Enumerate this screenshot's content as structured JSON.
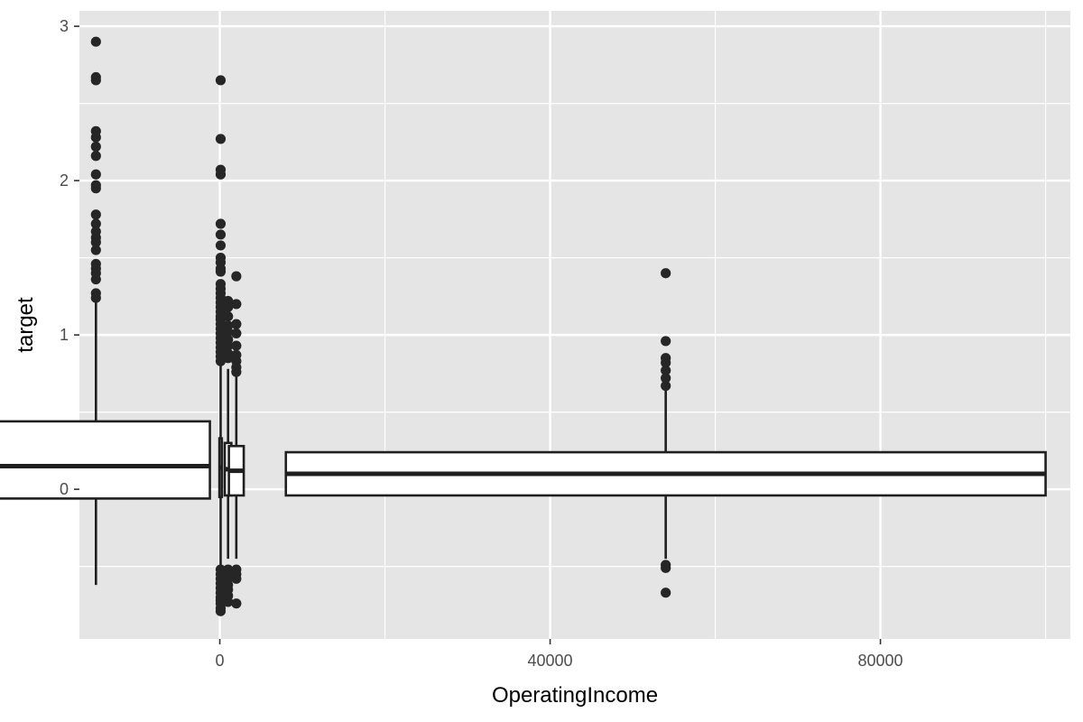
{
  "chart_data": {
    "type": "boxplot",
    "xlabel": "OperatingIncome",
    "ylabel": "target",
    "xlim": [
      -17000,
      103000
    ],
    "ylim": [
      -0.97,
      3.1
    ],
    "x_ticks": [
      0,
      40000,
      80000
    ],
    "x_minor": [
      -20000,
      20000,
      60000,
      100000
    ],
    "y_ticks": [
      0,
      1,
      2,
      3
    ],
    "y_minor": [
      -0.5,
      0.5,
      1.5,
      2.5
    ],
    "grid": true,
    "colors": {
      "panel": "#e5e5e5",
      "grid": "#ffffff",
      "box_fill": "#ffffff",
      "box_line": "#1f1f1f",
      "point": "#262626",
      "tick_text": "#4d4d4d"
    },
    "boxes": [
      {
        "x": -15000,
        "width": 27600,
        "q1": -0.06,
        "median": 0.15,
        "q3": 0.44,
        "whisker_low": -0.62,
        "whisker_high": 1.22,
        "outliers": [
          2.9,
          2.67,
          2.65,
          2.32,
          2.28,
          2.22,
          2.16,
          2.04,
          1.97,
          1.95,
          1.78,
          1.72,
          1.67,
          1.63,
          1.6,
          1.55,
          1.46,
          1.43,
          1.4,
          1.36,
          1.27,
          1.24
        ]
      },
      {
        "x": 100,
        "width": 300,
        "q1": -0.05,
        "median": 0.14,
        "q3": 0.33,
        "whisker_low": -0.5,
        "whisker_high": 0.8,
        "outliers": [
          2.65,
          2.27,
          2.07,
          2.04,
          1.72,
          1.65,
          1.58,
          1.5,
          1.47,
          1.43,
          1.41,
          1.33,
          1.3,
          1.27,
          1.24,
          1.21,
          1.18,
          1.15,
          1.12,
          1.1,
          1.07,
          1.04,
          1.01,
          0.98,
          0.95,
          0.92,
          0.89,
          0.86,
          0.83,
          -0.52,
          -0.55,
          -0.58,
          -0.61,
          -0.64,
          -0.67,
          -0.7,
          -0.72,
          -0.74,
          -0.77,
          -0.79
        ]
      },
      {
        "x": 1000,
        "width": 800,
        "q1": -0.04,
        "median": 0.13,
        "q3": 0.3,
        "whisker_low": -0.45,
        "whisker_high": 0.78,
        "outliers": [
          1.22,
          1.18,
          1.12,
          1.06,
          1.02,
          0.97,
          0.93,
          0.88,
          0.85,
          -0.52,
          -0.55,
          -0.58,
          -0.62,
          -0.65,
          -0.69,
          -0.73
        ]
      },
      {
        "x": 2000,
        "width": 1800,
        "q1": -0.04,
        "median": 0.12,
        "q3": 0.28,
        "whisker_low": -0.45,
        "whisker_high": 0.75,
        "outliers": [
          1.38,
          1.2,
          1.07,
          1.01,
          0.93,
          0.87,
          0.83,
          0.79,
          0.76,
          -0.52,
          -0.55,
          -0.58,
          -0.74
        ]
      },
      {
        "x": 54000,
        "width": 92000,
        "q1": -0.04,
        "median": 0.1,
        "q3": 0.24,
        "whisker_low": -0.45,
        "whisker_high": 0.64,
        "outliers": [
          1.4,
          0.96,
          0.85,
          0.82,
          0.77,
          0.72,
          0.67,
          -0.49,
          -0.51,
          -0.67
        ]
      }
    ]
  }
}
